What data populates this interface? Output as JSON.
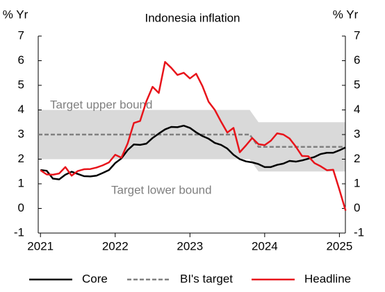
{
  "chart_data": {
    "type": "line",
    "title": "Indonesia inflation",
    "y_label": "% Yr",
    "y2_label": "% Yr",
    "x": [
      2021,
      2021.083,
      2021.167,
      2021.25,
      2021.333,
      2021.417,
      2021.5,
      2021.583,
      2021.667,
      2021.75,
      2021.833,
      2021.917,
      2022,
      2022.083,
      2022.167,
      2022.25,
      2022.333,
      2022.417,
      2022.5,
      2022.583,
      2022.667,
      2022.75,
      2022.833,
      2022.917,
      2023,
      2023.083,
      2023.167,
      2023.25,
      2023.333,
      2023.417,
      2023.5,
      2023.583,
      2023.667,
      2023.75,
      2023.833,
      2023.917,
      2024,
      2024.083,
      2024.167,
      2024.25,
      2024.333,
      2024.417,
      2024.5,
      2024.583,
      2024.667,
      2024.75,
      2024.833,
      2024.917,
      2025,
      2025.083
    ],
    "series": [
      {
        "name": "Core",
        "color": "#000000",
        "values": [
          1.56,
          1.53,
          1.21,
          1.18,
          1.37,
          1.49,
          1.4,
          1.31,
          1.3,
          1.33,
          1.44,
          1.56,
          1.84,
          2.03,
          2.37,
          2.6,
          2.58,
          2.63,
          2.86,
          3.04,
          3.21,
          3.31,
          3.3,
          3.36,
          3.27,
          3.09,
          2.94,
          2.83,
          2.66,
          2.58,
          2.43,
          2.18,
          2.0,
          1.91,
          1.87,
          1.8,
          1.68,
          1.68,
          1.77,
          1.82,
          1.93,
          1.9,
          1.95,
          2.02,
          2.09,
          2.21,
          2.26,
          2.26,
          2.36,
          2.48
        ]
      },
      {
        "name": "Headline",
        "color": "#e8141b",
        "values": [
          1.55,
          1.38,
          1.37,
          1.42,
          1.68,
          1.33,
          1.52,
          1.59,
          1.6,
          1.66,
          1.75,
          1.87,
          2.18,
          2.06,
          2.64,
          3.47,
          3.55,
          4.35,
          4.94,
          4.69,
          5.95,
          5.71,
          5.42,
          5.51,
          5.28,
          5.47,
          4.97,
          4.33,
          4.0,
          3.52,
          3.08,
          3.27,
          2.28,
          2.56,
          2.86,
          2.61,
          2.57,
          2.75,
          3.05,
          3.0,
          2.84,
          2.51,
          2.13,
          2.12,
          1.84,
          1.71,
          1.55,
          1.57,
          0.76,
          -0.09
        ]
      }
    ],
    "target": {
      "name": "BI's target",
      "color": "#808080",
      "x": [
        2020.97,
        2023.8,
        2023.917,
        2025.08
      ],
      "values": [
        3,
        3,
        2.5,
        2.5
      ],
      "upper": [
        4,
        4,
        3.5,
        3.5
      ],
      "lower": [
        2,
        2,
        1.5,
        1.5
      ],
      "band_color": "#d9d9d9"
    },
    "annotations": [
      "Target upper bound",
      "Target lower bound"
    ],
    "xlim": [
      2020.97,
      2025.08
    ],
    "xticks": [
      2021,
      2022,
      2023,
      2024,
      2025
    ],
    "ylim": [
      -1,
      7
    ],
    "yticks": [
      -1,
      0,
      1,
      2,
      3,
      4,
      5,
      6,
      7
    ],
    "y2lim": [
      -1,
      7
    ],
    "y2ticks": [
      -1,
      0,
      1,
      2,
      3,
      4,
      5,
      6,
      7
    ]
  }
}
